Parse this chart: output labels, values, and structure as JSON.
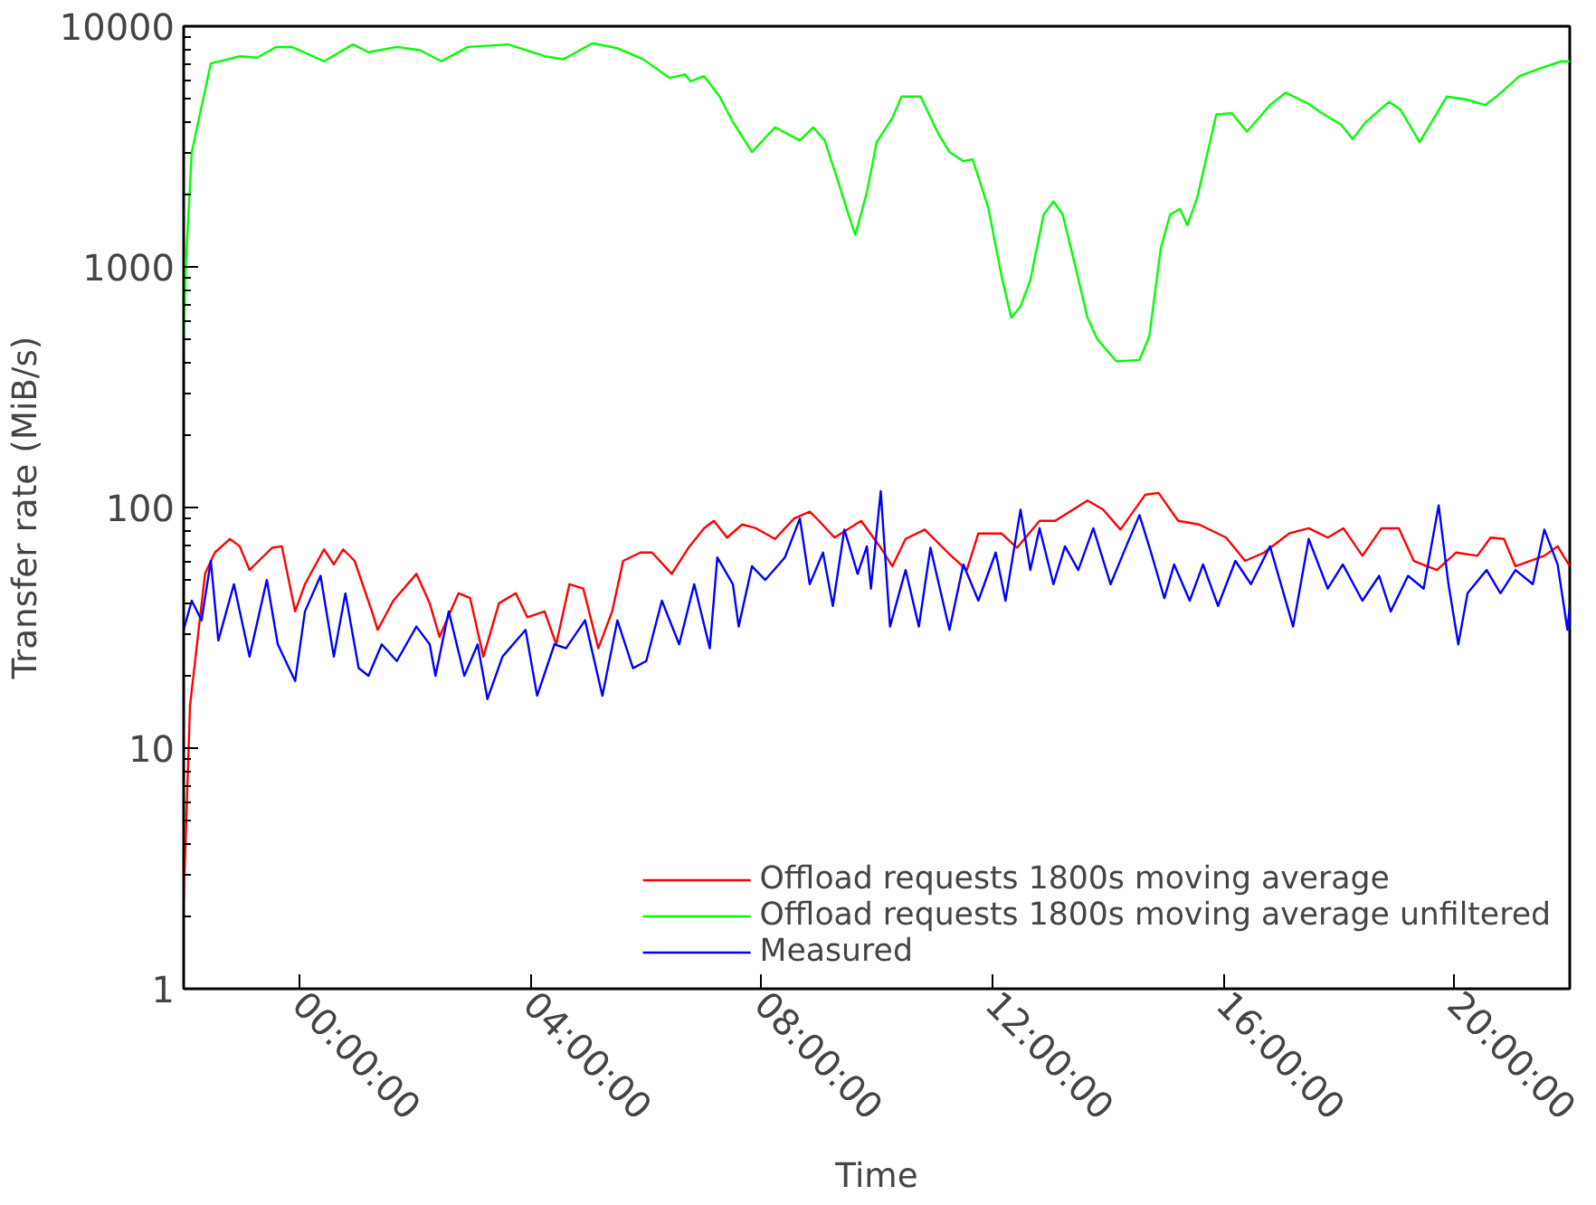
{
  "chart_data": {
    "type": "line",
    "xlabel": "Time",
    "ylabel": "Transfer rate (MiB/s)",
    "log": "y",
    "xlim": [
      -2,
      22
    ],
    "ylim": [
      1,
      10000
    ],
    "xticks": [
      {
        "value": 0,
        "label": "00:00:00"
      },
      {
        "value": 4,
        "label": "04:00:00"
      },
      {
        "value": 8,
        "label": "08:00:00"
      },
      {
        "value": 12,
        "label": "12:00:00"
      },
      {
        "value": 16,
        "label": "16:00:00"
      },
      {
        "value": 20,
        "label": "20:00:00"
      }
    ],
    "yticks": [
      1,
      10,
      100,
      1000,
      10000
    ],
    "grid": false,
    "legend": "bottom right",
    "line_style": "solid",
    "marker": "none",
    "series": [
      {
        "name": "Offload requests 1800s moving average",
        "color": "#ff0000",
        "x": [
          -2.0,
          -1.89,
          -1.63,
          -1.46,
          -1.2,
          -1.03,
          -0.86,
          -0.7,
          -0.47,
          -0.3,
          -0.07,
          0.1,
          0.43,
          0.6,
          0.76,
          0.96,
          1.26,
          1.36,
          1.63,
          2.03,
          2.26,
          2.43,
          2.76,
          2.96,
          3.19,
          3.46,
          3.75,
          3.95,
          4.25,
          4.45,
          4.68,
          4.92,
          5.18,
          5.42,
          5.61,
          5.91,
          6.11,
          6.45,
          6.74,
          7.01,
          7.18,
          7.41,
          7.67,
          7.91,
          8.24,
          8.57,
          8.84,
          9.0,
          9.27,
          9.73,
          10.07,
          10.27,
          10.5,
          10.83,
          11.23,
          11.56,
          11.76,
          12.16,
          12.43,
          12.82,
          13.09,
          13.65,
          13.92,
          14.22,
          14.65,
          14.88,
          15.22,
          15.58,
          16.05,
          16.38,
          16.71,
          17.14,
          17.48,
          17.81,
          18.08,
          18.41,
          18.74,
          19.04,
          19.3,
          19.7,
          20.03,
          20.4,
          20.63,
          20.86,
          21.06,
          21.56,
          21.79,
          22.0
        ],
        "values": [
          2.3,
          15,
          53,
          65,
          74,
          69,
          55,
          60,
          68,
          69,
          37,
          48,
          67,
          58,
          67,
          60,
          37,
          31,
          41,
          53,
          40,
          29,
          44,
          42,
          24,
          40,
          44,
          35,
          37,
          27,
          48,
          46,
          26,
          37,
          60,
          65,
          65,
          53,
          68,
          82,
          88,
          75,
          85,
          82,
          74,
          90,
          96,
          88,
          75,
          88,
          68,
          57,
          74,
          81,
          65,
          55,
          78,
          78,
          68,
          88,
          88,
          107,
          98,
          81,
          113,
          115,
          88,
          85,
          75,
          60,
          65,
          78,
          82,
          75,
          82,
          63,
          82,
          82,
          60,
          55,
          65,
          63,
          75,
          74,
          57,
          63,
          69,
          57
        ]
      },
      {
        "name": "Offload requests 1800s moving average unfiltered",
        "color": "#00ff00",
        "x": [
          -2.0,
          -1.96,
          -1.86,
          -1.53,
          -1.03,
          -0.73,
          -0.4,
          -0.13,
          0.43,
          0.93,
          1.2,
          1.69,
          2.09,
          2.46,
          2.92,
          3.62,
          4.25,
          4.58,
          5.08,
          5.51,
          5.95,
          6.41,
          6.68,
          6.78,
          7.01,
          7.28,
          7.51,
          7.84,
          8.24,
          8.67,
          8.9,
          9.1,
          9.34,
          9.57,
          9.63,
          9.83,
          10.0,
          10.27,
          10.43,
          10.76,
          11.06,
          11.26,
          11.5,
          11.66,
          11.93,
          12.16,
          12.33,
          12.49,
          12.66,
          12.89,
          13.06,
          13.22,
          13.42,
          13.65,
          13.82,
          14.15,
          14.55,
          14.72,
          14.92,
          15.08,
          15.25,
          15.38,
          15.55,
          15.88,
          16.15,
          16.41,
          16.81,
          17.08,
          17.48,
          17.71,
          18.04,
          18.24,
          18.47,
          18.87,
          19.07,
          19.4,
          19.87,
          20.23,
          20.53,
          20.73,
          21.13,
          21.46,
          21.86,
          22.0
        ],
        "values": [
          460,
          1050,
          3000,
          7000,
          7500,
          7400,
          8200,
          8200,
          7150,
          8400,
          7800,
          8200,
          7950,
          7150,
          8200,
          8400,
          7500,
          7300,
          8500,
          8100,
          7300,
          6100,
          6300,
          5900,
          6200,
          5100,
          4000,
          3000,
          3800,
          3350,
          3800,
          3350,
          2230,
          1490,
          1360,
          2040,
          3300,
          4150,
          5100,
          5100,
          3600,
          3000,
          2750,
          2800,
          1770,
          920,
          615,
          685,
          880,
          1650,
          1870,
          1650,
          1050,
          615,
          500,
          405,
          410,
          515,
          1200,
          1650,
          1740,
          1490,
          1940,
          4300,
          4350,
          3650,
          4700,
          5300,
          4750,
          4350,
          3900,
          3400,
          4000,
          4850,
          4500,
          3300,
          5100,
          4950,
          4700,
          5100,
          6200,
          6650,
          7150,
          7150
        ]
      },
      {
        "name": "Measured",
        "color": "#0000ff",
        "x": [
          -2.0,
          -1.86,
          -1.69,
          -1.53,
          -1.4,
          -1.13,
          -0.86,
          -0.56,
          -0.37,
          -0.07,
          0.1,
          0.37,
          0.6,
          0.8,
          1.03,
          1.2,
          1.43,
          1.69,
          2.03,
          2.26,
          2.36,
          2.59,
          2.86,
          3.09,
          3.26,
          3.52,
          3.92,
          4.12,
          4.42,
          4.62,
          4.95,
          5.25,
          5.51,
          5.78,
          6.01,
          6.28,
          6.58,
          6.84,
          7.11,
          7.24,
          7.51,
          7.61,
          7.84,
          8.07,
          8.41,
          8.67,
          8.84,
          9.07,
          9.24,
          9.44,
          9.67,
          9.83,
          9.9,
          10.07,
          10.23,
          10.5,
          10.73,
          10.93,
          11.26,
          11.5,
          11.76,
          12.06,
          12.23,
          12.49,
          12.66,
          12.82,
          13.06,
          13.26,
          13.49,
          13.75,
          14.05,
          14.32,
          14.55,
          14.75,
          14.98,
          15.15,
          15.42,
          15.65,
          15.91,
          16.21,
          16.48,
          16.81,
          17.21,
          17.48,
          17.81,
          18.07,
          18.41,
          18.7,
          18.9,
          19.2,
          19.47,
          19.73,
          19.9,
          20.07,
          20.23,
          20.56,
          20.8,
          21.06,
          21.36,
          21.56,
          21.79,
          21.96,
          22.0
        ],
        "values": [
          31,
          41,
          34,
          60,
          28,
          48,
          24,
          50,
          27,
          19,
          37,
          52,
          24,
          44,
          21.5,
          20,
          27,
          23,
          32,
          27,
          20,
          37,
          20,
          27,
          16,
          24,
          31,
          16.5,
          27,
          26,
          34,
          16.5,
          34,
          21.5,
          23,
          41,
          27,
          48,
          26,
          62,
          48,
          32,
          57,
          50,
          62,
          90,
          48,
          65,
          39,
          81,
          53,
          69,
          46,
          117,
          32,
          55,
          32,
          68,
          31,
          58,
          41,
          65,
          41,
          98,
          55,
          82,
          48,
          69,
          55,
          82,
          48,
          69,
          93,
          65,
          42,
          58,
          41,
          58,
          39,
          60,
          48,
          69,
          32,
          74,
          46,
          58,
          41,
          52,
          37,
          52,
          46,
          102,
          48,
          27,
          44,
          55,
          44,
          55,
          48,
          81,
          58,
          31,
          39
        ]
      }
    ]
  }
}
